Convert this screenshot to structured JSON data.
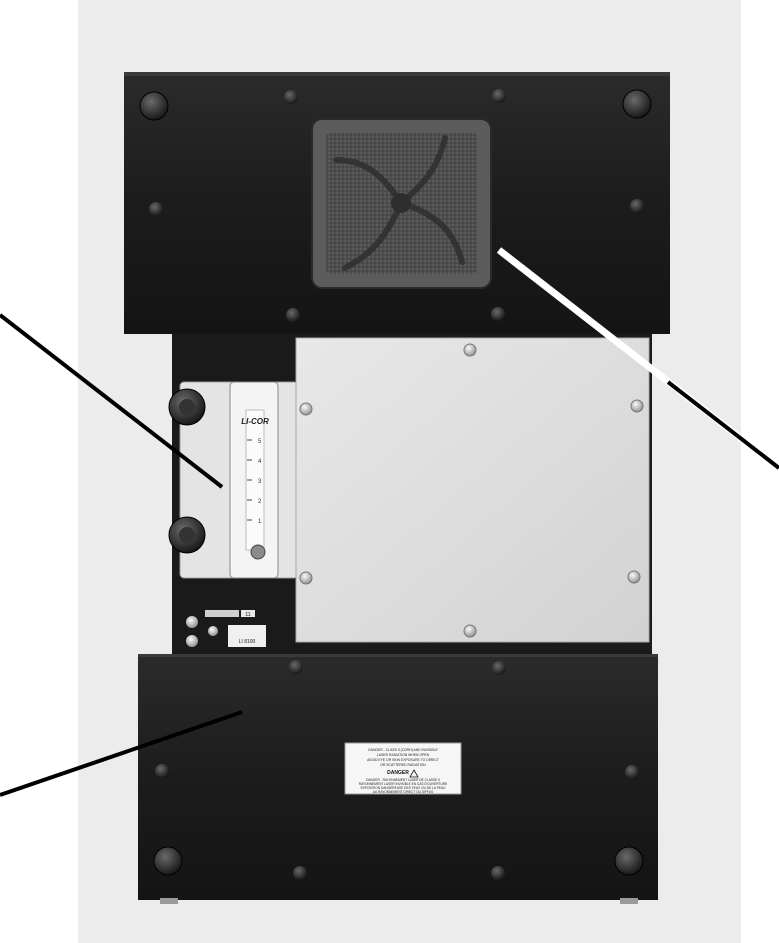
{
  "image": {
    "description_title": "Instrument enclosure front view",
    "colors": {
      "background": "#ffffff",
      "backdrop": "#ececec",
      "panel_dark": "#1f1f1f",
      "panel_light": "#dedede",
      "flowmeter_body": "#e6e6e6",
      "filter": "#5a5a5a",
      "callout_line": "#000000"
    }
  },
  "flowmeter": {
    "brand": "LI-COR",
    "scale_marks": [
      "5",
      "4",
      "3",
      "2",
      "1"
    ]
  },
  "connector_panel": {
    "tag_small": "11",
    "tag_text": "LI 8100"
  },
  "warning_label": {
    "line1": "DANGER - CLASS II (CDRH) AND INVISIBLE",
    "line2": "LASER RADIATION WHEN OPEN",
    "line3": "AVOID EYE OR SKIN EXPOSURE TO DIRECT",
    "line4": "OR SCATTERED RADIATION",
    "heading": "DANGER",
    "line5": "DANGER - RAYONNEMENT LASER DE CLASSE II",
    "line6": "RAYONNEMENT LASER INVISIBLE EN CAS D'OUVERTURE",
    "line7": "EXPOSITION DANGEREUSE DES YEUX OU DE LA PEAU",
    "line8": "AU RAYONNEMENT DIRECT OU DIFFUS"
  }
}
